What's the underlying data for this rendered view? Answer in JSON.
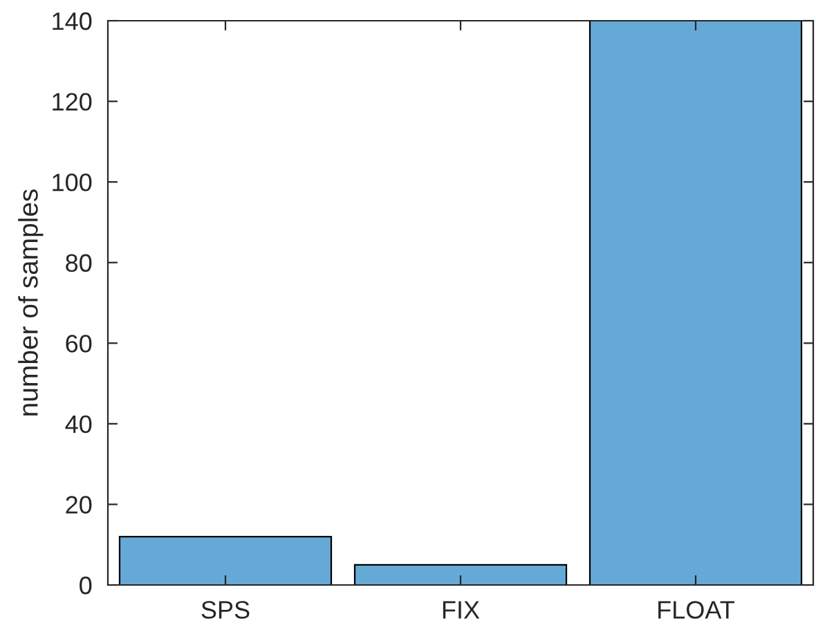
{
  "chart_data": {
    "type": "bar",
    "ylabel": "number of samples",
    "categories": [
      "SPS",
      "FIX",
      "FLOAT"
    ],
    "values": [
      12,
      5,
      140
    ],
    "color": "#65a9d7",
    "ylim": [
      0,
      140
    ],
    "yticks": [
      0,
      20,
      40,
      60,
      80,
      100,
      120,
      140
    ],
    "grid": false
  }
}
